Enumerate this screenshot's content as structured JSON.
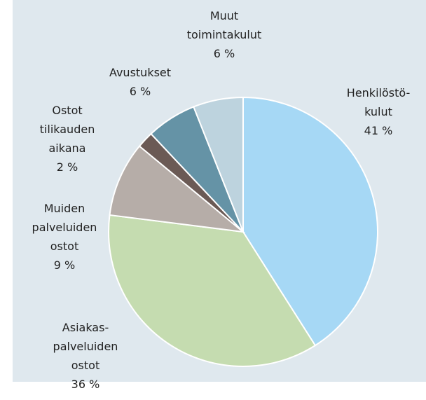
{
  "chart_data": {
    "type": "pie",
    "categories": [
      [
        "Henkilöstö-",
        "kulut"
      ],
      [
        "Asiakas-",
        "palveluiden",
        "ostot"
      ],
      [
        "Muiden",
        "palveluiden",
        "ostot"
      ],
      [
        "Ostot",
        "tilikauden",
        "aikana"
      ],
      [
        "Avustukset"
      ],
      [
        "Muut",
        "toimintakulut"
      ]
    ],
    "values": [
      41,
      36,
      9,
      2,
      6,
      6
    ],
    "value_labels": [
      "41 %",
      "36 %",
      "9 %",
      "2 %",
      "6 %",
      "6 %"
    ],
    "colors": [
      "#a6d8f5",
      "#c5dcb0",
      "#b6ada8",
      "#6b5a55",
      "#6593a6",
      "#bdd3de"
    ]
  }
}
